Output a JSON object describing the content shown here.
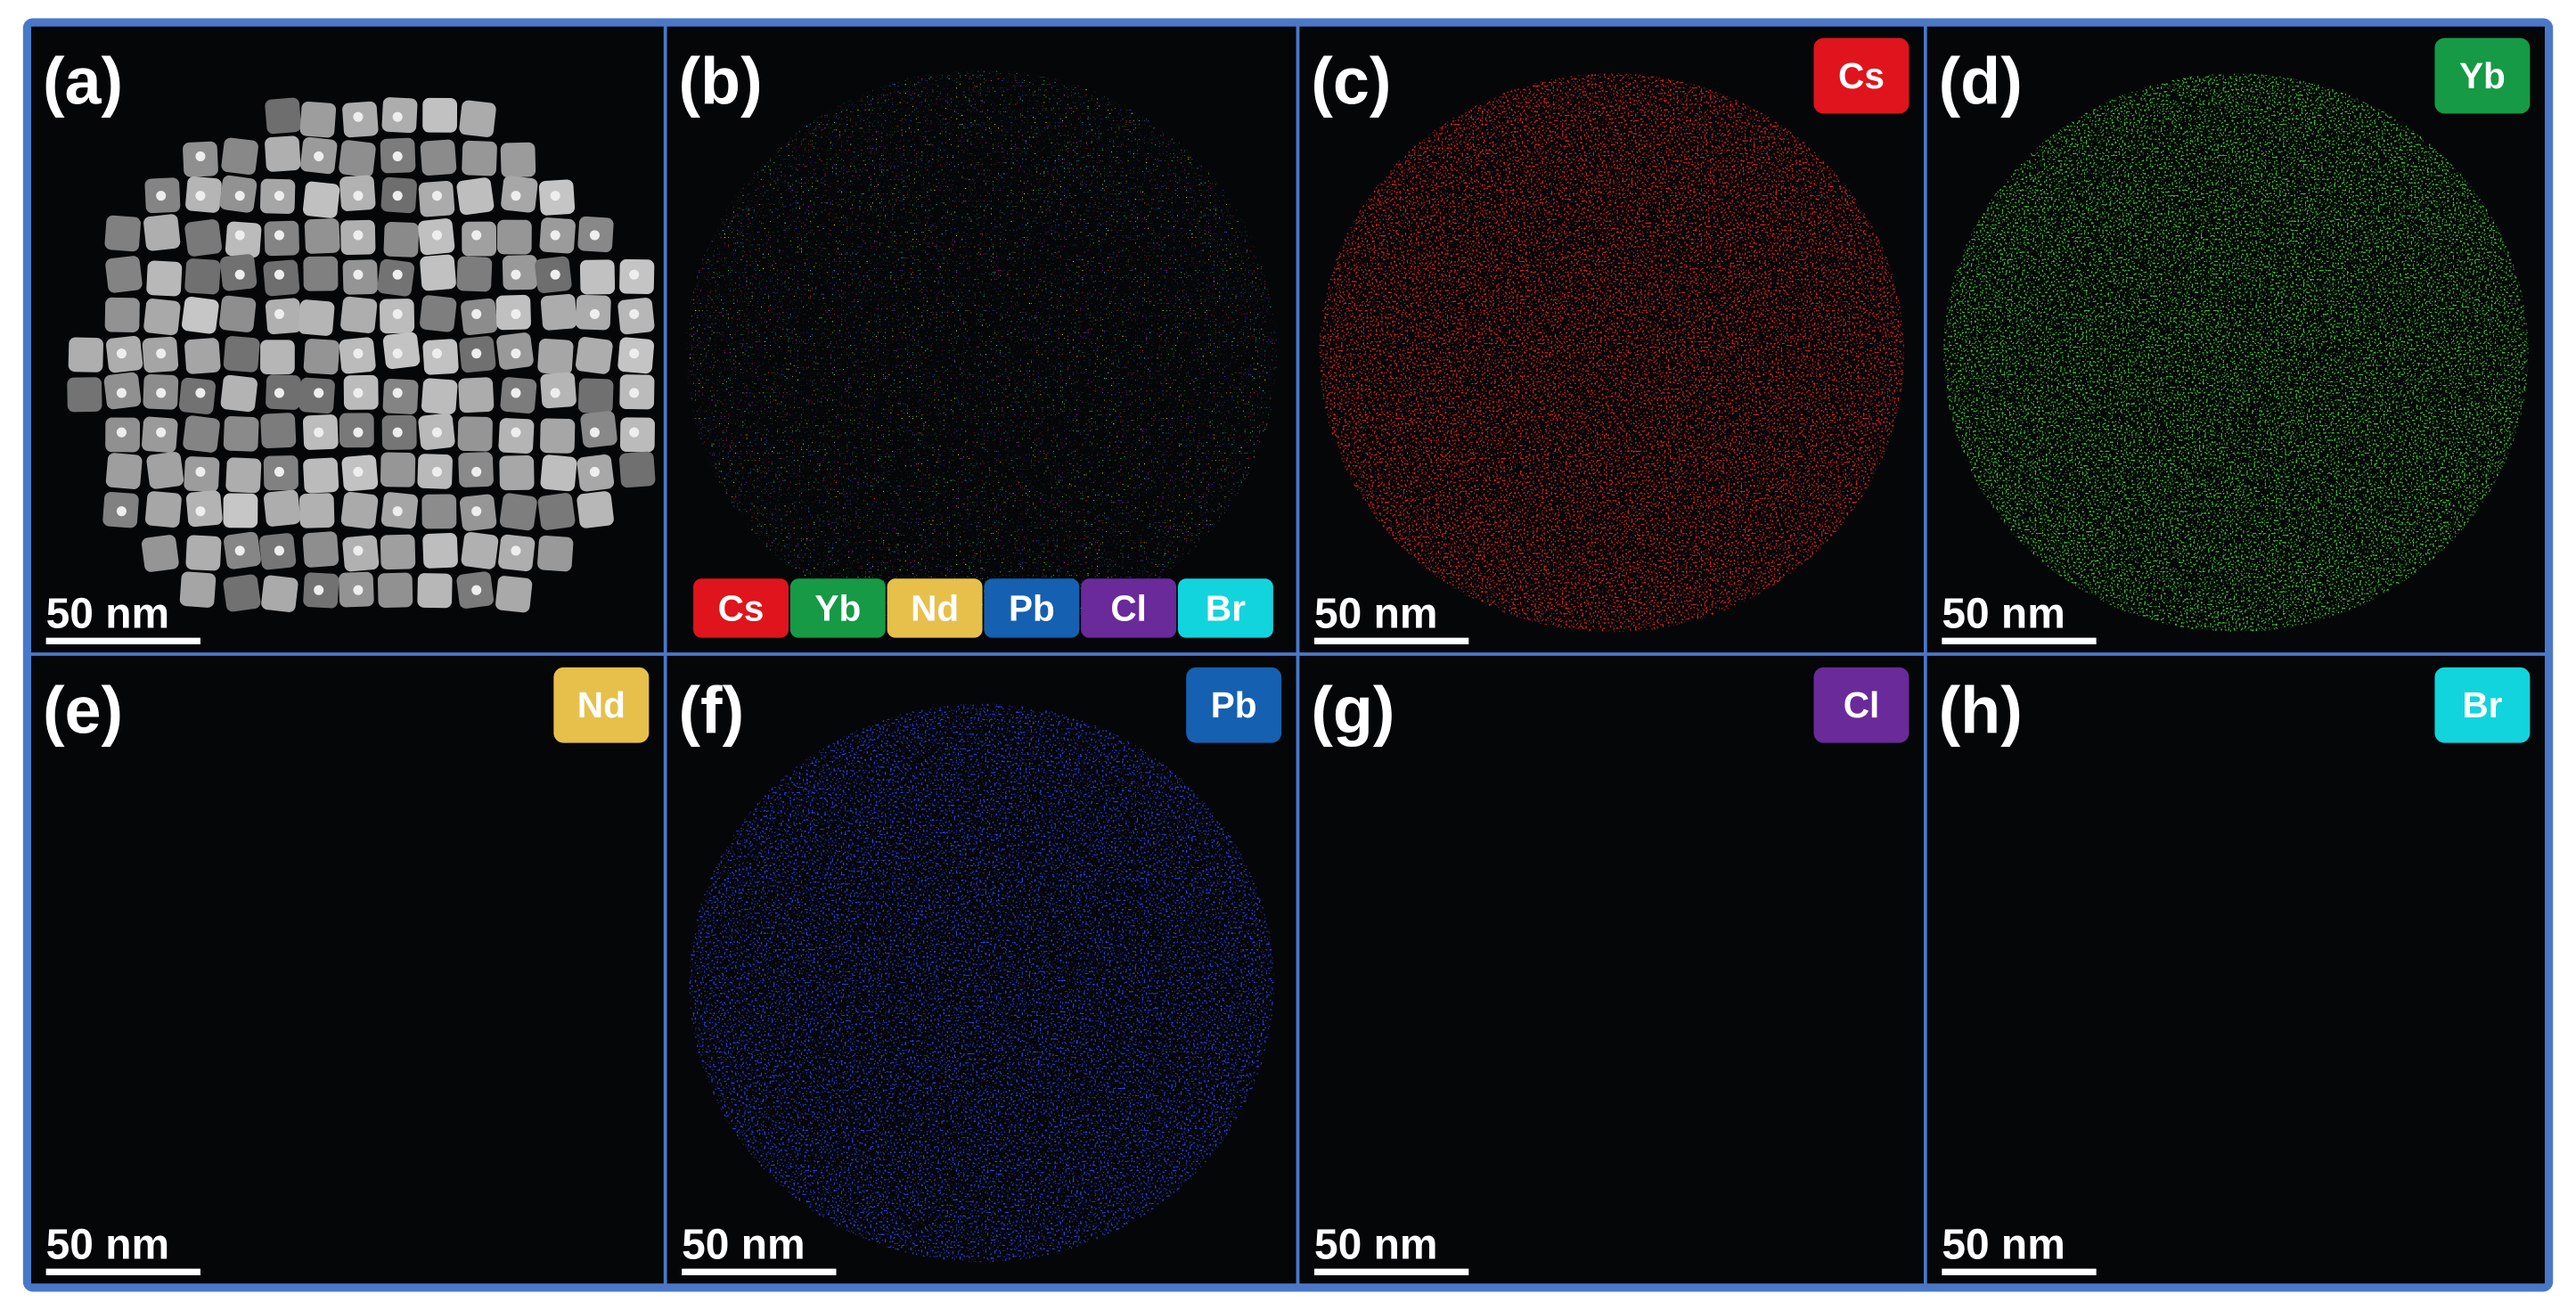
{
  "panels": [
    {
      "label": "(a)",
      "scale_bar": "50 nm"
    },
    {
      "label": "(b)",
      "legend": [
        {
          "text": "Cs",
          "color": "#e0141c"
        },
        {
          "text": "Yb",
          "color": "#169a45"
        },
        {
          "text": "Nd",
          "color": "#e6c04a"
        },
        {
          "text": "Pb",
          "color": "#1560b0"
        },
        {
          "text": "Cl",
          "color": "#6a2a9a"
        },
        {
          "text": "Br",
          "color": "#12d4dc"
        }
      ]
    },
    {
      "label": "(c)",
      "tag": "Cs",
      "color": "#e0141c",
      "map_color": "#d42020",
      "scale_bar": "50 nm"
    },
    {
      "label": "(d)",
      "tag": "Yb",
      "color": "#169a45",
      "map_color": "#38c030",
      "scale_bar": "50 nm"
    },
    {
      "label": "(e)",
      "tag": "Nd",
      "color": "#e6c04a",
      "map_color": "#dcd020",
      "scale_bar": "50 nm"
    },
    {
      "label": "(f)",
      "tag": "Pb",
      "color": "#1560b0",
      "map_color": "#2a40ec",
      "scale_bar": "50 nm"
    },
    {
      "label": "(g)",
      "tag": "Cl",
      "color": "#6a2a9a",
      "map_color": "#c424cc",
      "scale_bar": "50 nm"
    },
    {
      "label": "(h)",
      "tag": "Br",
      "color": "#12d4dc",
      "map_color": "#22ccd4",
      "scale_bar": "50 nm"
    }
  ]
}
